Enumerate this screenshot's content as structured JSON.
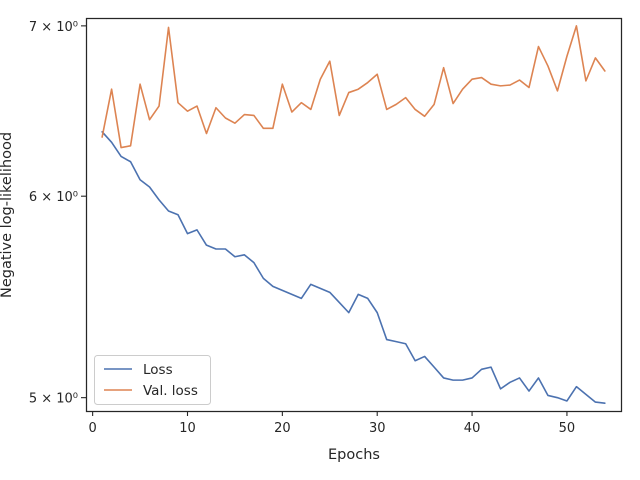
{
  "chart_data": {
    "type": "line",
    "xlabel": "Epochs",
    "ylabel": "Negative log-likelihood",
    "xlim": [
      -0.7,
      55.7
    ],
    "ylim": [
      4.94,
      7.05
    ],
    "yscale": "log",
    "grid": false,
    "legend_position": "lower-left",
    "xticks": [
      0,
      10,
      20,
      30,
      40,
      50
    ],
    "yticks": [
      5,
      6,
      7
    ],
    "ytick_labels": [
      "5 × 10⁰",
      "6 × 10⁰",
      "7 × 10⁰"
    ],
    "x": [
      1,
      2,
      3,
      4,
      5,
      6,
      7,
      8,
      9,
      10,
      11,
      12,
      13,
      14,
      15,
      16,
      17,
      18,
      19,
      20,
      21,
      22,
      23,
      24,
      25,
      26,
      27,
      28,
      29,
      30,
      31,
      32,
      33,
      34,
      35,
      36,
      37,
      38,
      39,
      40,
      41,
      42,
      43,
      44,
      45,
      46,
      47,
      48,
      49,
      50,
      51,
      52,
      53,
      54
    ],
    "series": [
      {
        "name": "Loss",
        "color": "#4c72b0",
        "values": [
          6.36,
          6.3,
          6.22,
          6.19,
          6.09,
          6.05,
          5.98,
          5.92,
          5.9,
          5.8,
          5.82,
          5.74,
          5.72,
          5.72,
          5.68,
          5.69,
          5.65,
          5.57,
          5.53,
          5.51,
          5.49,
          5.47,
          5.54,
          5.52,
          5.5,
          5.45,
          5.4,
          5.49,
          5.47,
          5.4,
          5.27,
          5.26,
          5.25,
          5.17,
          5.19,
          5.14,
          5.09,
          5.08,
          5.08,
          5.09,
          5.13,
          5.14,
          5.04,
          5.07,
          5.09,
          5.03,
          5.09,
          5.01,
          5.0,
          4.985,
          5.05,
          5.015,
          4.98,
          4.975
        ]
      },
      {
        "name": "Val. loss",
        "color": "#dd8452",
        "values": [
          6.33,
          6.61,
          6.27,
          6.28,
          6.64,
          6.43,
          6.51,
          6.99,
          6.53,
          6.48,
          6.51,
          6.35,
          6.5,
          6.44,
          6.41,
          6.46,
          6.455,
          6.38,
          6.38,
          6.64,
          6.475,
          6.53,
          6.49,
          6.67,
          6.78,
          6.455,
          6.59,
          6.61,
          6.65,
          6.7,
          6.49,
          6.52,
          6.56,
          6.49,
          6.45,
          6.52,
          6.74,
          6.525,
          6.61,
          6.67,
          6.68,
          6.64,
          6.63,
          6.635,
          6.665,
          6.62,
          6.87,
          6.75,
          6.6,
          6.81,
          7.0,
          6.66,
          6.8,
          6.72
        ]
      }
    ]
  }
}
